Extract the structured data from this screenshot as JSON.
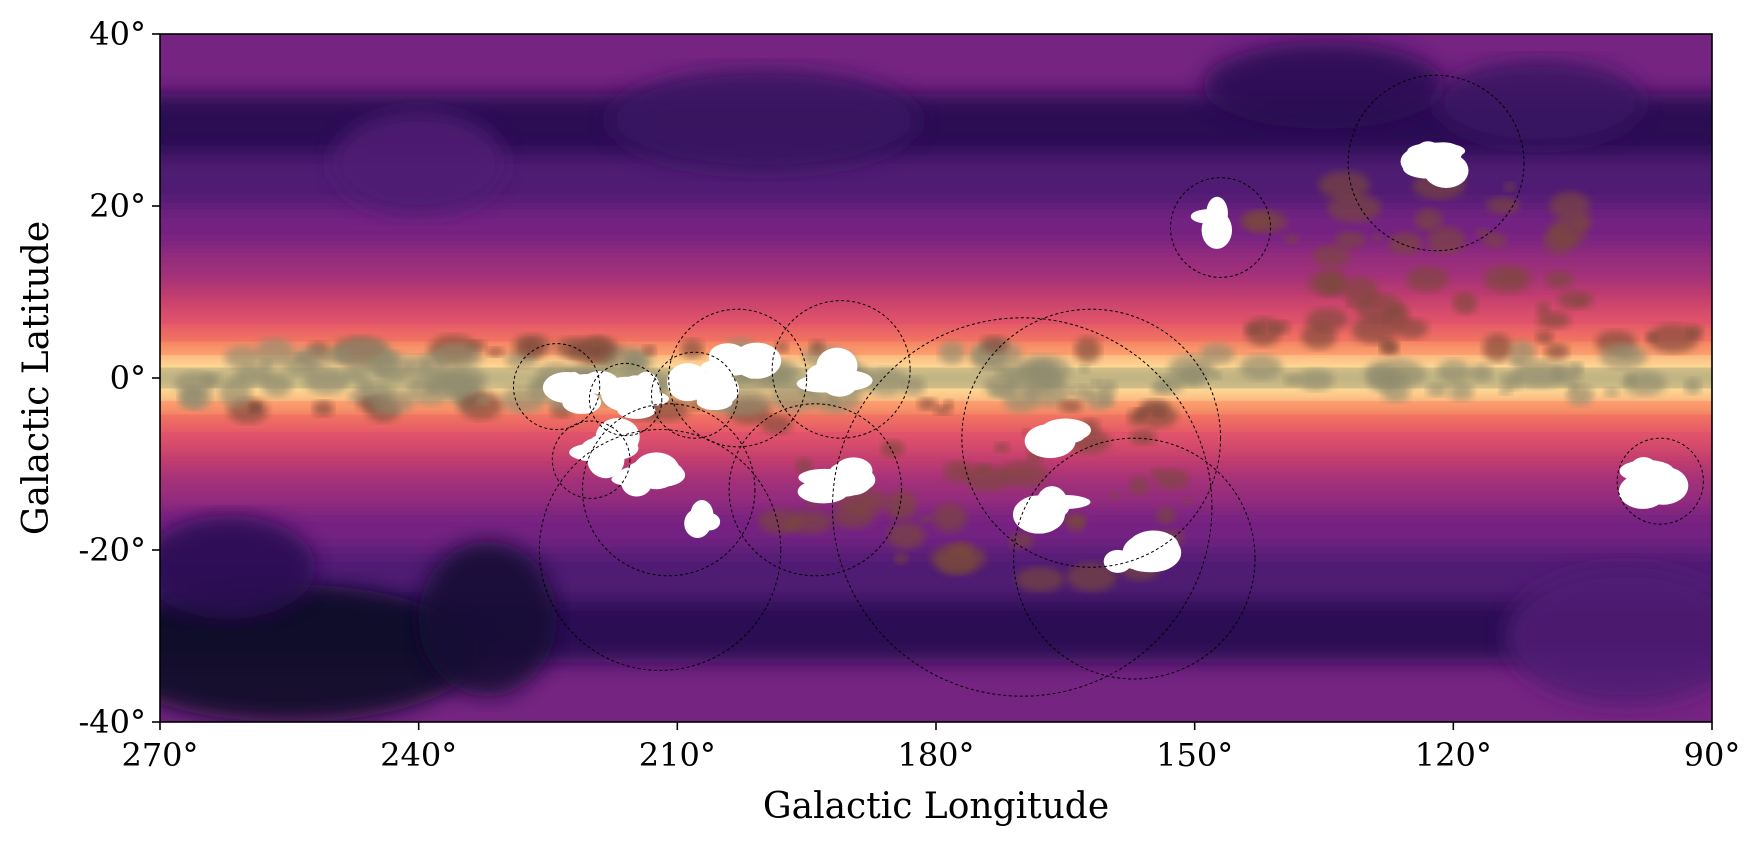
{
  "chart_data": {
    "type": "heatmap",
    "title": "",
    "xlabel": "Galactic Longitude",
    "ylabel": "Galactic Latitude",
    "xlim": [
      270,
      90
    ],
    "ylim": [
      -40,
      40
    ],
    "x_reversed": true,
    "colormap": "magma",
    "x_ticks": [
      {
        "value": 270,
        "label": "270°"
      },
      {
        "value": 240,
        "label": "240°"
      },
      {
        "value": 210,
        "label": "210°"
      },
      {
        "value": 180,
        "label": "180°"
      },
      {
        "value": 150,
        "label": "150°"
      },
      {
        "value": 120,
        "label": "120°"
      },
      {
        "value": 90,
        "label": "90°"
      }
    ],
    "y_ticks": [
      {
        "value": 40,
        "label": "40°"
      },
      {
        "value": 20,
        "label": "20°"
      },
      {
        "value": 0,
        "label": "0°"
      },
      {
        "value": -20,
        "label": "-20°"
      },
      {
        "value": -40,
        "label": "-40°"
      }
    ],
    "band_colors": [
      "#0d0a25",
      "#2b1152",
      "#4f1b73",
      "#752482",
      "#9b2e7c",
      "#c23c6e",
      "#e3556a",
      "#f57d5f",
      "#fdab73",
      "#fde29c",
      "#9c9a74"
    ],
    "circles": [
      {
        "l": 224,
        "b": -1,
        "r": 5
      },
      {
        "l": 216,
        "b": -2.5,
        "r": 4.2
      },
      {
        "l": 208,
        "b": -2,
        "r": 5
      },
      {
        "l": 203,
        "b": 0,
        "r": 8
      },
      {
        "l": 191,
        "b": 1,
        "r": 8
      },
      {
        "l": 220,
        "b": -9.5,
        "r": 4.5
      },
      {
        "l": 211,
        "b": -13,
        "r": 10
      },
      {
        "l": 212,
        "b": -20,
        "r": 14
      },
      {
        "l": 194,
        "b": -13,
        "r": 10
      },
      {
        "l": 162,
        "b": -7,
        "r": 15
      },
      {
        "l": 170,
        "b": -15,
        "r": 22
      },
      {
        "l": 157,
        "b": -21,
        "r": 14
      },
      {
        "l": 147,
        "b": 17.5,
        "r": 5.8
      },
      {
        "l": 122,
        "b": 25,
        "r": 10.2
      },
      {
        "l": 96,
        "b": -12,
        "r": 5
      }
    ],
    "cloud_regions": [
      {
        "l": 221,
        "b": -1.5
      },
      {
        "l": 214,
        "b": -2.5
      },
      {
        "l": 207,
        "b": -1.5
      },
      {
        "l": 202,
        "b": 2
      },
      {
        "l": 192,
        "b": 0.5
      },
      {
        "l": 218,
        "b": -8
      },
      {
        "l": 213,
        "b": -12
      },
      {
        "l": 206,
        "b": -17
      },
      {
        "l": 191,
        "b": -12
      },
      {
        "l": 165,
        "b": -7
      },
      {
        "l": 166,
        "b": -15
      },
      {
        "l": 157,
        "b": -21
      },
      {
        "l": 147,
        "b": 18
      },
      {
        "l": 123,
        "b": 25
      },
      {
        "l": 96,
        "b": -12
      }
    ]
  }
}
